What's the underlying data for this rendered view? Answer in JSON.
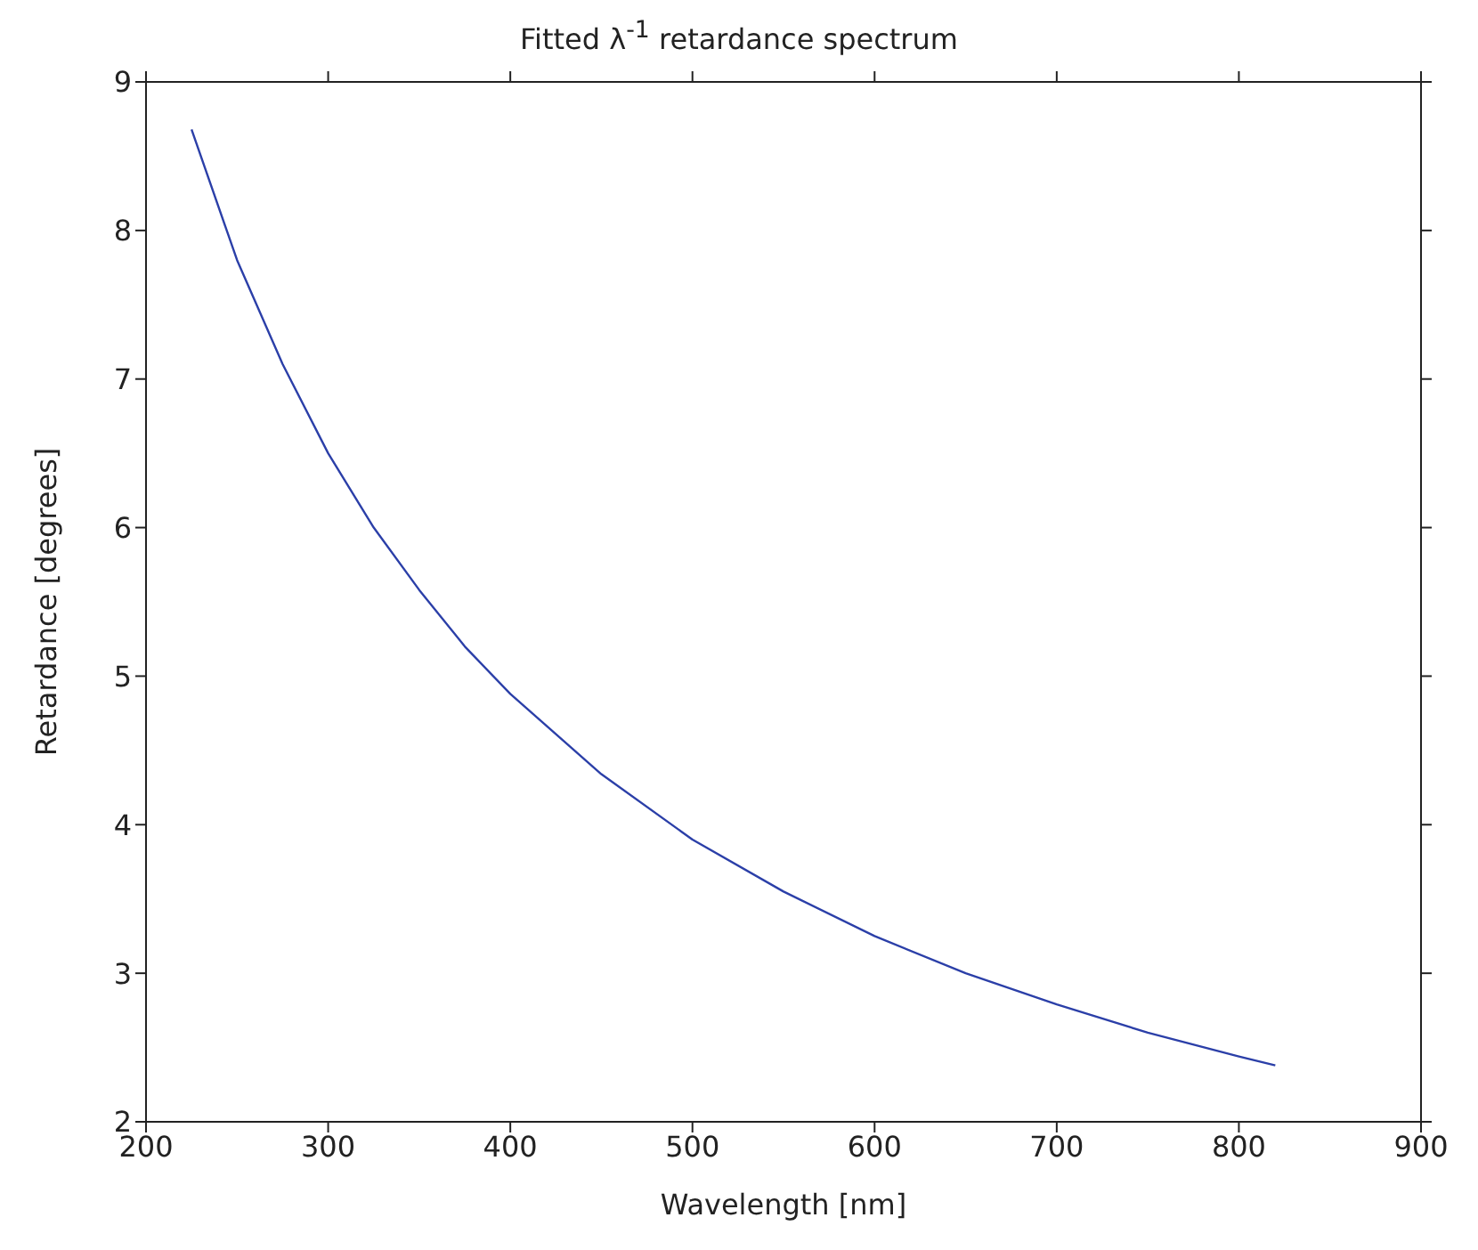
{
  "chart_data": {
    "type": "line",
    "title": "Fitted λ$^{-1}$ retardance spectrum",
    "xlabel": "Wavelength [nm]",
    "ylabel": "Retardance [degrees]",
    "x": [
      225,
      250,
      275,
      300,
      325,
      350,
      375,
      400,
      450,
      500,
      550,
      600,
      650,
      700,
      750,
      800,
      820
    ],
    "series": [
      {
        "color": "#2b3fa8",
        "values": [
          8.68,
          7.8,
          7.1,
          6.5,
          6.0,
          5.58,
          5.2,
          4.88,
          4.34,
          3.9,
          3.55,
          3.25,
          3.0,
          2.79,
          2.6,
          2.44,
          2.38
        ]
      }
    ],
    "xlim": [
      200,
      900
    ],
    "xticks": [
      200,
      300,
      400,
      500,
      600,
      700,
      800,
      900
    ],
    "ylim": [
      2,
      9
    ],
    "yticks": [
      2,
      3,
      4,
      5,
      6,
      7,
      8,
      9
    ],
    "grid": false,
    "legend": false,
    "marker": "none",
    "line_style": "solid"
  }
}
